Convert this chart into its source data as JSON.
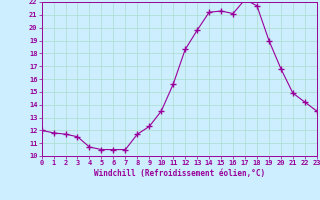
{
  "x": [
    0,
    1,
    2,
    3,
    4,
    5,
    6,
    7,
    8,
    9,
    10,
    11,
    12,
    13,
    14,
    15,
    16,
    17,
    18,
    19,
    20,
    21,
    22,
    23
  ],
  "y": [
    12.0,
    11.8,
    11.7,
    11.5,
    10.7,
    10.5,
    10.5,
    10.5,
    11.7,
    12.3,
    13.5,
    15.6,
    18.3,
    19.8,
    21.2,
    21.3,
    21.1,
    22.2,
    21.7,
    19.0,
    16.8,
    14.9,
    14.2,
    13.5
  ],
  "line_color": "#990099",
  "marker": "+",
  "bg_color": "#cceeff",
  "grid_color": "#aaddcc",
  "xlabel": "Windchill (Refroidissement éolien,°C)",
  "ylim": [
    10,
    22
  ],
  "xlim": [
    0,
    23
  ],
  "yticks": [
    10,
    11,
    12,
    13,
    14,
    15,
    16,
    17,
    18,
    19,
    20,
    21,
    22
  ],
  "xticks": [
    0,
    1,
    2,
    3,
    4,
    5,
    6,
    7,
    8,
    9,
    10,
    11,
    12,
    13,
    14,
    15,
    16,
    17,
    18,
    19,
    20,
    21,
    22,
    23
  ],
  "xlabel_color": "#990099",
  "tick_color": "#990099",
  "axis_color": "#990099"
}
